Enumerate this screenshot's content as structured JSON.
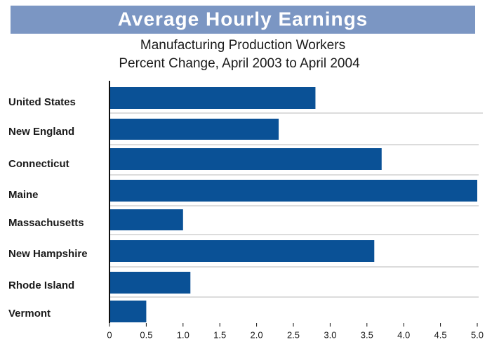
{
  "chart_data": {
    "type": "bar",
    "orientation": "horizontal",
    "title": "Average Hourly Earnings",
    "subtitle": [
      "Manufacturing Production Workers",
      "Percent Change, April 2003 to April 2004"
    ],
    "categories": [
      "United States",
      "New England",
      "Connecticut",
      "Maine",
      "Massachusetts",
      "New Hampshire",
      "Rhode Island",
      "Vermont"
    ],
    "values": [
      2.8,
      2.3,
      3.7,
      5.0,
      1.0,
      3.6,
      1.1,
      0.5
    ],
    "color": "#0a5196",
    "xlim": [
      0,
      5
    ],
    "xticks": [
      0,
      0.5,
      {
        "value": 1,
        "label": "1.0"
      },
      1.5,
      {
        "value": 2,
        "label": "2.0"
      },
      2.5,
      {
        "value": 3,
        "label": "3.0"
      },
      3.5,
      {
        "value": 4,
        "label": "4.0"
      },
      4.5,
      {
        "value": 5,
        "label": "5.0"
      }
    ]
  }
}
